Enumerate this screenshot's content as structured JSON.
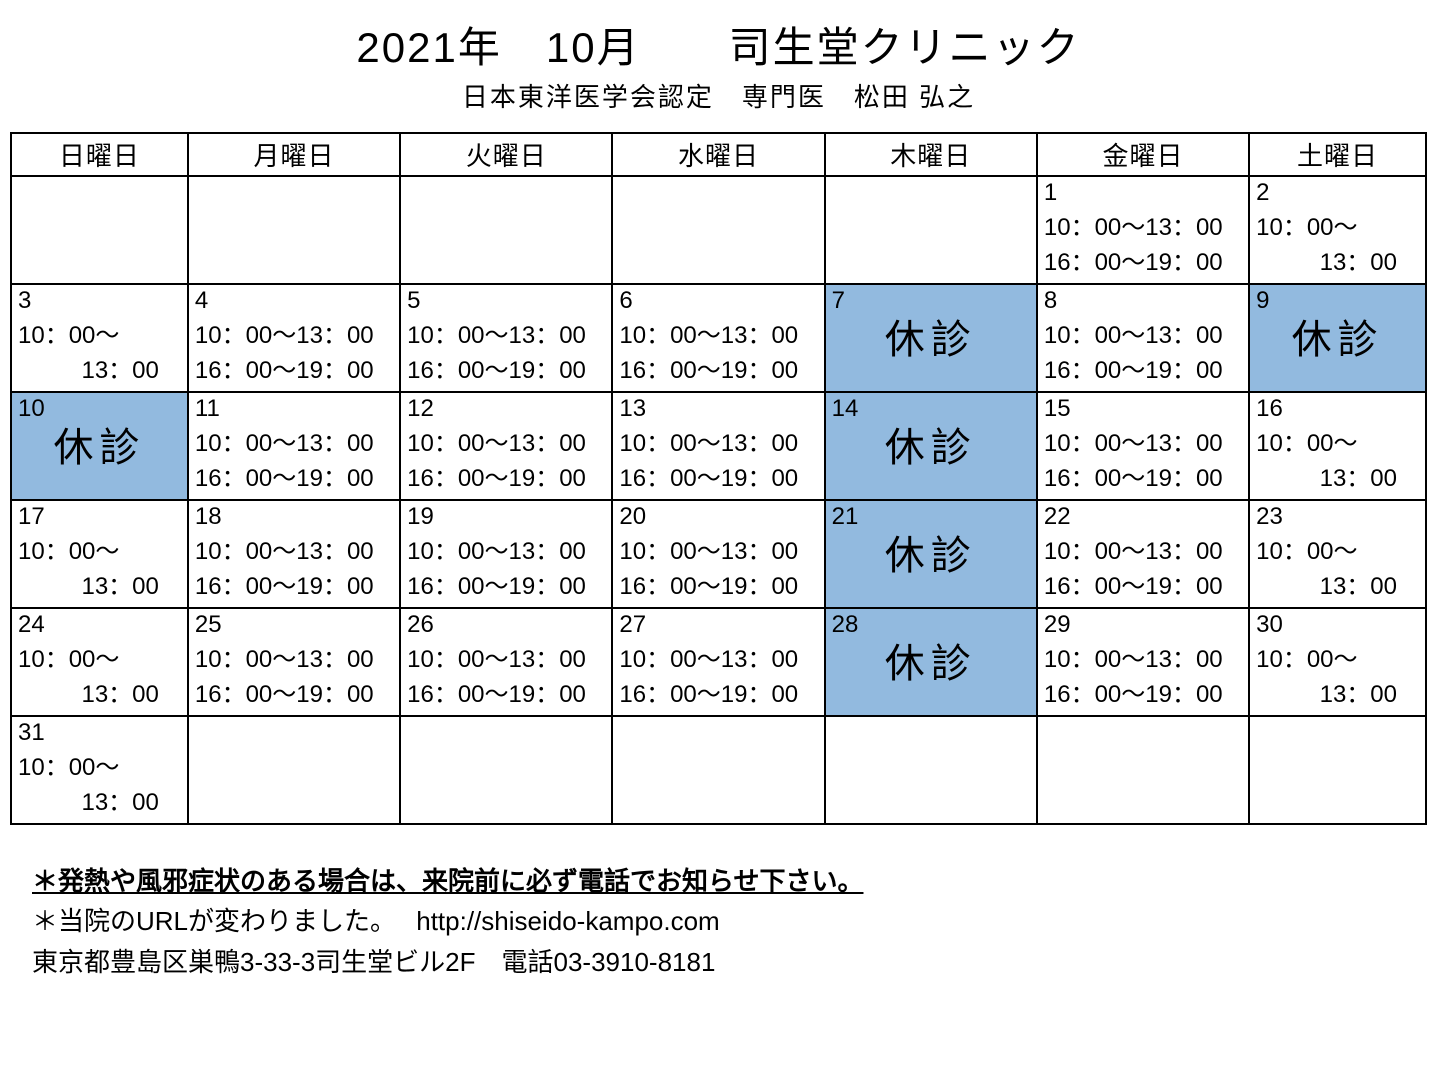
{
  "header": {
    "title": "2021年　10月　　司生堂クリニック",
    "subtitle": "日本東洋医学会認定　専門医　松田 弘之"
  },
  "calendar": {
    "colors": {
      "closed_bg": "#92badf",
      "border": "#000000"
    },
    "day_headers": [
      "日曜日",
      "月曜日",
      "火曜日",
      "水曜日",
      "木曜日",
      "金曜日",
      "土曜日"
    ],
    "closed_label": "休診",
    "full_hours": [
      "10：00～13：00",
      "16：00～19：00"
    ],
    "half_hours": [
      "10：00～",
      "13：00"
    ],
    "weeks": [
      [
        {
          "empty": true
        },
        {
          "empty": true
        },
        {
          "empty": true
        },
        {
          "empty": true
        },
        {
          "empty": true
        },
        {
          "day": 1,
          "type": "full"
        },
        {
          "day": 2,
          "type": "half"
        }
      ],
      [
        {
          "day": 3,
          "type": "half"
        },
        {
          "day": 4,
          "type": "full"
        },
        {
          "day": 5,
          "type": "full"
        },
        {
          "day": 6,
          "type": "full"
        },
        {
          "day": 7,
          "type": "closed"
        },
        {
          "day": 8,
          "type": "full"
        },
        {
          "day": 9,
          "type": "closed"
        }
      ],
      [
        {
          "day": 10,
          "type": "closed"
        },
        {
          "day": 11,
          "type": "full"
        },
        {
          "day": 12,
          "type": "full"
        },
        {
          "day": 13,
          "type": "full"
        },
        {
          "day": 14,
          "type": "closed"
        },
        {
          "day": 15,
          "type": "full"
        },
        {
          "day": 16,
          "type": "half"
        }
      ],
      [
        {
          "day": 17,
          "type": "half"
        },
        {
          "day": 18,
          "type": "full"
        },
        {
          "day": 19,
          "type": "full"
        },
        {
          "day": 20,
          "type": "full"
        },
        {
          "day": 21,
          "type": "closed"
        },
        {
          "day": 22,
          "type": "full"
        },
        {
          "day": 23,
          "type": "half"
        }
      ],
      [
        {
          "day": 24,
          "type": "half"
        },
        {
          "day": 25,
          "type": "full"
        },
        {
          "day": 26,
          "type": "full"
        },
        {
          "day": 27,
          "type": "full"
        },
        {
          "day": 28,
          "type": "closed"
        },
        {
          "day": 29,
          "type": "full"
        },
        {
          "day": 30,
          "type": "half"
        }
      ],
      [
        {
          "day": 31,
          "type": "half"
        },
        {
          "empty": true
        },
        {
          "empty": true
        },
        {
          "empty": true
        },
        {
          "empty": true
        },
        {
          "empty": true
        },
        {
          "empty": true
        }
      ]
    ]
  },
  "footer": {
    "notice": "＊発熱や風邪症状のある場合は、来院前に必ず電話でお知らせ下さい。",
    "url_line": "＊当院のURLが変わりました。　 http://shiseido-kampo.com",
    "address_line": "東京都豊島区巣鴨3-33-3司生堂ビル2F　電話03-3910-8181"
  }
}
